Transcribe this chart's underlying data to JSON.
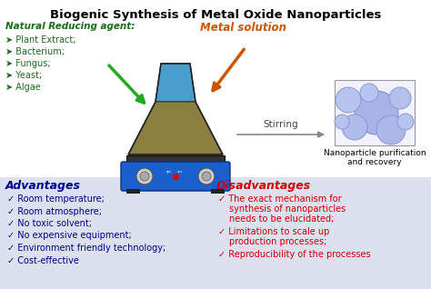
{
  "title": "Biogenic Synthesis of Metal Oxide Nanoparticles",
  "title_color": "#000000",
  "title_fontsize": 9.5,
  "natural_reducing_label": "Natural Reducing agent",
  "natural_reducing_color": "#1a6b1a",
  "natural_reducing_items": [
    "Plant Extract;",
    "Bacterium;",
    "Fungus;",
    "Yeast;",
    "Algae"
  ],
  "metal_solution_label": "Metal solution",
  "metal_solution_color": "#cc5500",
  "stirring_label": "Stirring",
  "stirring_color": "#555555",
  "nanoparticle_label": "Nanoparticle purification\nand recovery",
  "nanoparticle_color": "#000000",
  "advantages_title": "Advantages",
  "advantages_title_color": "#00008B",
  "advantages_items": [
    "Room temperature;",
    "Room atmosphere;",
    "No toxic solvent;",
    "No expensive equipment;",
    "Environment friendly technology;",
    "Cost-effective"
  ],
  "advantages_color": "#00008B",
  "disadvantages_title": "Disadvantages",
  "disadvantages_title_color": "#cc0000",
  "disadvantages_items_lines": [
    [
      "The exact mechanism for",
      "synthesis of nanoparticles",
      "needs to be elucidated;"
    ],
    [
      "Limitations to scale up",
      "production processes;"
    ],
    [
      "Reproducibility of the processes"
    ]
  ],
  "disadvantages_color": "#cc0000",
  "bg_color": "#ffffff",
  "bottom_bg_color": "#dde0ee"
}
